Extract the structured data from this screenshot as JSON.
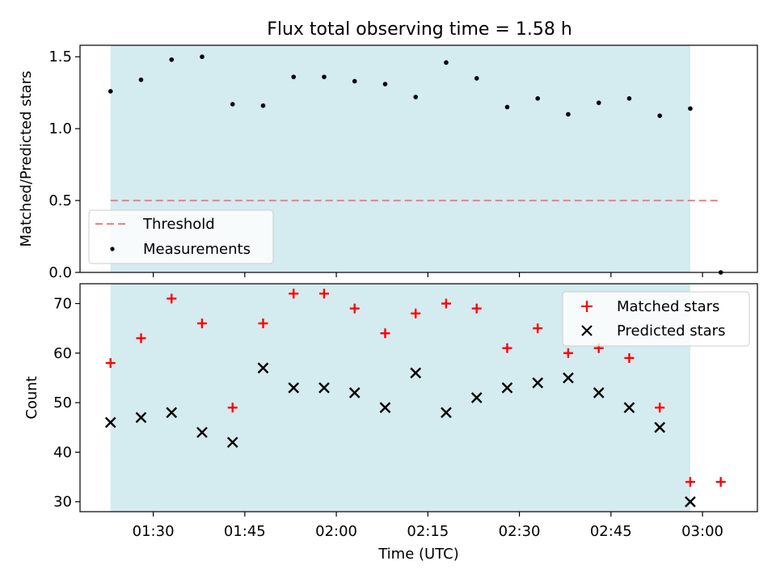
{
  "title": "Flux total observing time = 1.58 h",
  "chart_data": [
    {
      "type": "scatter",
      "ylabel": "Matched/Predicted stars",
      "xlabel": "",
      "ylim": [
        0,
        1.58
      ],
      "yticks": [
        0.0,
        0.5,
        1.0,
        1.5
      ],
      "ytick_labels": [
        "0.0",
        "0.5",
        "1.0",
        "1.5"
      ],
      "threshold": 0.5,
      "legend_position": "lower-left",
      "series": [
        {
          "name": "Measurements",
          "marker": "dot",
          "color": "#000000",
          "x": [
            "01:23",
            "01:28",
            "01:33",
            "01:38",
            "01:43",
            "01:48",
            "01:53",
            "01:58",
            "02:03",
            "02:08",
            "02:13",
            "02:18",
            "02:23",
            "02:28",
            "02:33",
            "02:38",
            "02:43",
            "02:48",
            "02:53",
            "02:58",
            "03:03"
          ],
          "y": [
            1.26,
            1.34,
            1.48,
            1.5,
            1.17,
            1.16,
            1.36,
            1.36,
            1.33,
            1.31,
            1.22,
            1.46,
            1.35,
            1.15,
            1.21,
            1.1,
            1.18,
            1.21,
            1.09,
            1.14,
            0.0
          ]
        },
        {
          "name": "Threshold",
          "marker": "dashed-line",
          "color": "#f08080",
          "x": [
            "01:23",
            "03:03"
          ],
          "y": [
            0.5,
            0.5
          ]
        }
      ]
    },
    {
      "type": "scatter",
      "xlabel": "Time (UTC)",
      "ylabel": "Count",
      "ylim": [
        28,
        74
      ],
      "yticks": [
        30,
        40,
        50,
        60,
        70
      ],
      "ytick_labels": [
        "30",
        "40",
        "50",
        "60",
        "70"
      ],
      "xticks": [
        "01:30",
        "01:45",
        "02:00",
        "02:15",
        "02:30",
        "02:45",
        "03:00"
      ],
      "legend_position": "top-right",
      "series": [
        {
          "name": "Matched stars",
          "marker": "plus",
          "color": "#ff0000",
          "x": [
            "01:23",
            "01:28",
            "01:33",
            "01:38",
            "01:43",
            "01:48",
            "01:53",
            "01:58",
            "02:03",
            "02:08",
            "02:13",
            "02:18",
            "02:23",
            "02:28",
            "02:33",
            "02:38",
            "02:43",
            "02:48",
            "02:53",
            "02:58",
            "03:03"
          ],
          "y": [
            58,
            63,
            71,
            66,
            49,
            66,
            72,
            72,
            69,
            64,
            68,
            70,
            69,
            61,
            65,
            60,
            61,
            59,
            49,
            34,
            34
          ]
        },
        {
          "name": "Predicted stars",
          "marker": "x",
          "color": "#000000",
          "x": [
            "01:23",
            "01:28",
            "01:33",
            "01:38",
            "01:43",
            "01:48",
            "01:53",
            "01:58",
            "02:03",
            "02:08",
            "02:13",
            "02:18",
            "02:23",
            "02:28",
            "02:33",
            "02:38",
            "02:43",
            "02:48",
            "02:53",
            "02:58"
          ],
          "y": [
            46,
            47,
            48,
            44,
            42,
            57,
            53,
            53,
            52,
            49,
            56,
            48,
            51,
            53,
            54,
            55,
            52,
            49,
            45,
            30
          ]
        }
      ]
    }
  ],
  "observing_window": {
    "start": "01:23",
    "end": "02:58",
    "color": "#d4ebf0"
  },
  "x_range": [
    "01:18",
    "03:09"
  ]
}
